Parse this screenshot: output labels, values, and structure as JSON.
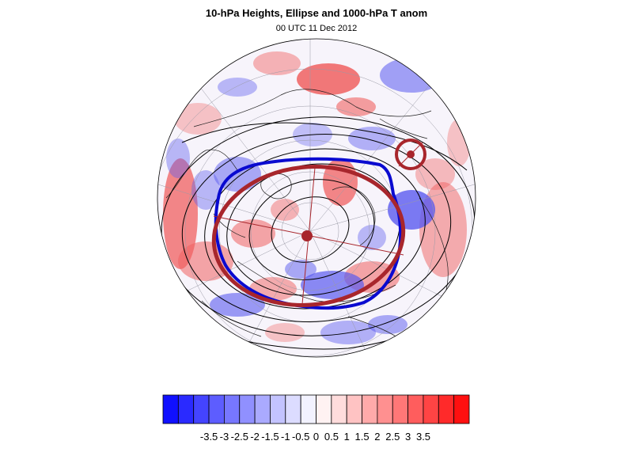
{
  "header": {
    "title": "10-hPa Heights, Ellipse and 1000-hPa T anom",
    "subtitle": "00 UTC 11 Dec 2012"
  },
  "legend": {
    "colors": [
      "#1010ff",
      "#2a2aff",
      "#4444ff",
      "#5d5dff",
      "#7777ff",
      "#9090ff",
      "#aaaaff",
      "#c3c3ff",
      "#dcdcff",
      "#f2f2ff",
      "#fff2f2",
      "#ffdcdc",
      "#ffc3c3",
      "#ffaaaa",
      "#ff9090",
      "#ff7777",
      "#ff5d5d",
      "#ff4444",
      "#ff2a2a",
      "#ff1010"
    ],
    "tick_labels": [
      "-3.5",
      "-3",
      "-2.5",
      "-2",
      "-1.5",
      "-1",
      "-0.5",
      "0",
      "0.5",
      "1",
      "1.5",
      "2",
      "2.5",
      "3",
      "3.5"
    ]
  },
  "map": {
    "anomaly_colors": {
      "warm": "#f06060",
      "cold": "#5a5af0"
    },
    "ellipse_color": "#a8262c",
    "vortex_edge_color": "#0a0ad0",
    "contour_color": "#000000"
  }
}
